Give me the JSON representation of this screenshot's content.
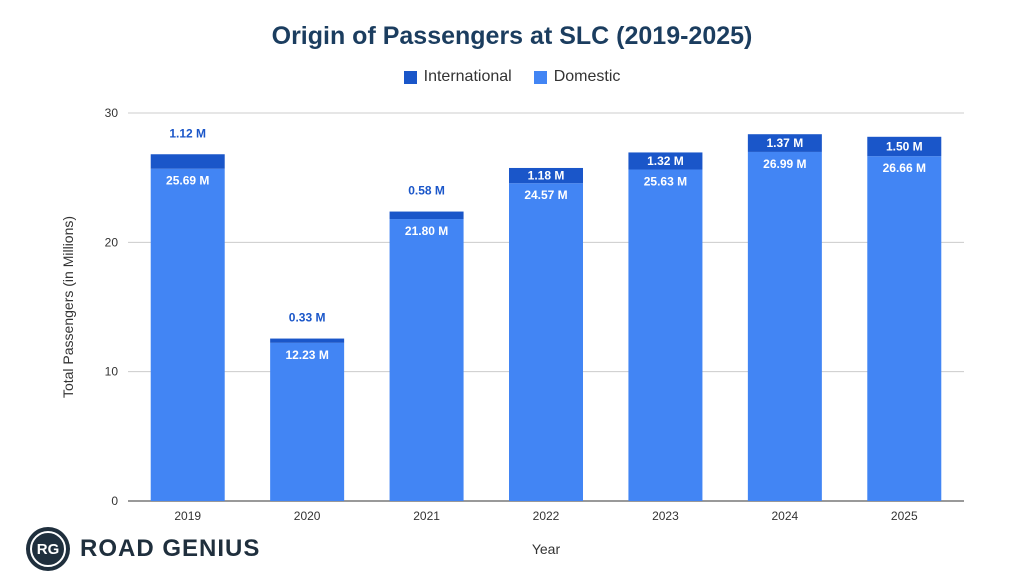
{
  "chart_data": {
    "type": "bar",
    "stacked": true,
    "title": "Origin of Passengers at SLC (2019-2025)",
    "xlabel": "Year",
    "ylabel": "Total Passengers (in Millions)",
    "ylim": [
      0,
      30
    ],
    "yticks": [
      0,
      10,
      20,
      30
    ],
    "grid": true,
    "legend_position": "top-center",
    "categories": [
      "2019",
      "2020",
      "2021",
      "2022",
      "2023",
      "2024",
      "2025"
    ],
    "series": [
      {
        "name": "Domestic",
        "color": "#4285f4",
        "values": [
          25.69,
          12.23,
          21.8,
          24.57,
          25.63,
          26.99,
          26.66
        ],
        "labels": [
          "25.69 M",
          "12.23 M",
          "21.80 M",
          "24.57 M",
          "25.63 M",
          "26.99 M",
          "26.66 M"
        ]
      },
      {
        "name": "International",
        "color": "#1a56c9",
        "values": [
          1.12,
          0.33,
          0.58,
          1.18,
          1.32,
          1.37,
          1.5
        ],
        "labels": [
          "1.12 M",
          "0.33 M",
          "0.58 M",
          "1.18 M",
          "1.32 M",
          "1.37 M",
          "1.50 M"
        ]
      }
    ],
    "legend": [
      "International",
      "Domestic"
    ]
  },
  "logo": {
    "badge": "RG",
    "text": "ROAD GENIUS"
  }
}
